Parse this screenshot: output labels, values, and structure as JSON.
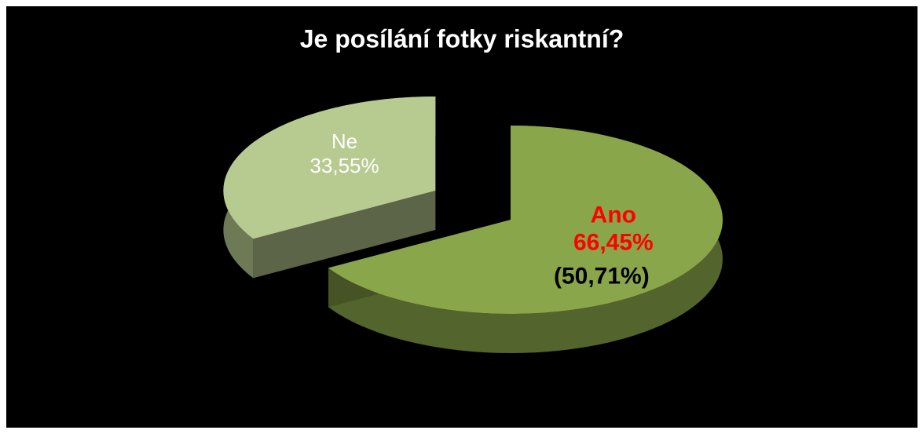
{
  "chart_data": {
    "type": "pie",
    "title": "Je posílání fotky riskantní?",
    "categories": [
      "Ano",
      "Ne"
    ],
    "values": [
      66.45,
      33.55
    ],
    "value_labels": [
      "66,45%",
      "33,55%"
    ],
    "colors": [
      "#8aa64a",
      "#b7ca90"
    ],
    "explode": [
      false,
      true
    ],
    "annotation": "(50,71%)"
  }
}
